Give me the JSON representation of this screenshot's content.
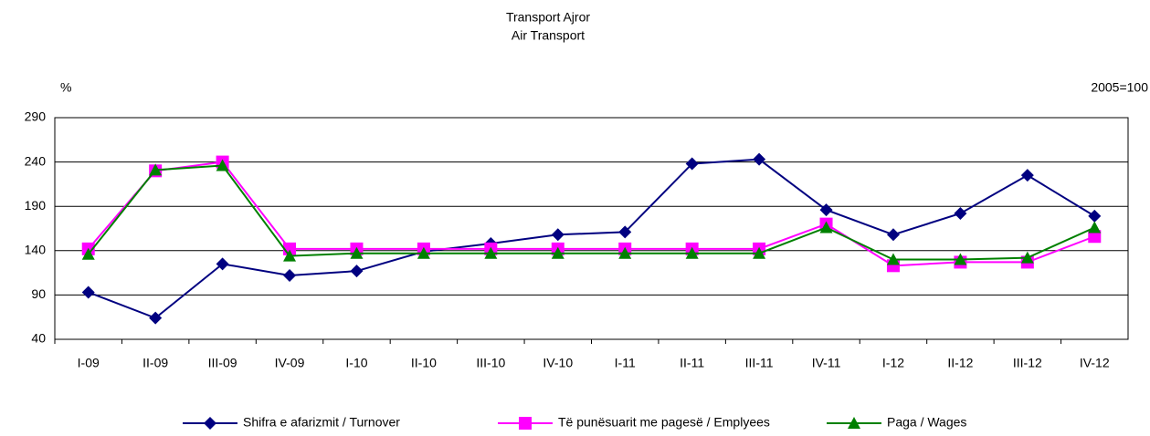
{
  "chart_data": {
    "type": "line",
    "title": "Transport Ajror",
    "subtitle": "Air Transport",
    "y_label": "%",
    "annotation": "2005=100",
    "categories": [
      "I-09",
      "II-09",
      "III-09",
      "IV-09",
      "I-10",
      "II-10",
      "III-10",
      "IV-10",
      "I-11",
      "II-11",
      "III-11",
      "IV-11",
      "I-12",
      "II-12",
      "III-12",
      "IV-12"
    ],
    "series": [
      {
        "name": "Shifra e afarizmit / Turnover",
        "color": "#000080",
        "marker": "diamond",
        "values": [
          93,
          64,
          125,
          112,
          117,
          139,
          148,
          158,
          161,
          238,
          243,
          186,
          158,
          182,
          225,
          179
        ]
      },
      {
        "name": "Të punësuarit me pagesë / Emplyees",
        "color": "#ff00ff",
        "marker": "square",
        "values": [
          142,
          230,
          240,
          142,
          142,
          142,
          142,
          142,
          142,
          142,
          142,
          170,
          123,
          127,
          127,
          156
        ]
      },
      {
        "name": "Paga / Wages",
        "color": "#008000",
        "marker": "triangle",
        "values": [
          136,
          231,
          236,
          134,
          137,
          137,
          137,
          137,
          137,
          137,
          137,
          166,
          130,
          130,
          132,
          166
        ]
      }
    ],
    "ylim": [
      40,
      290
    ],
    "yticks": [
      40,
      90,
      140,
      190,
      240,
      290
    ],
    "grid": true,
    "legend": "bottom"
  }
}
